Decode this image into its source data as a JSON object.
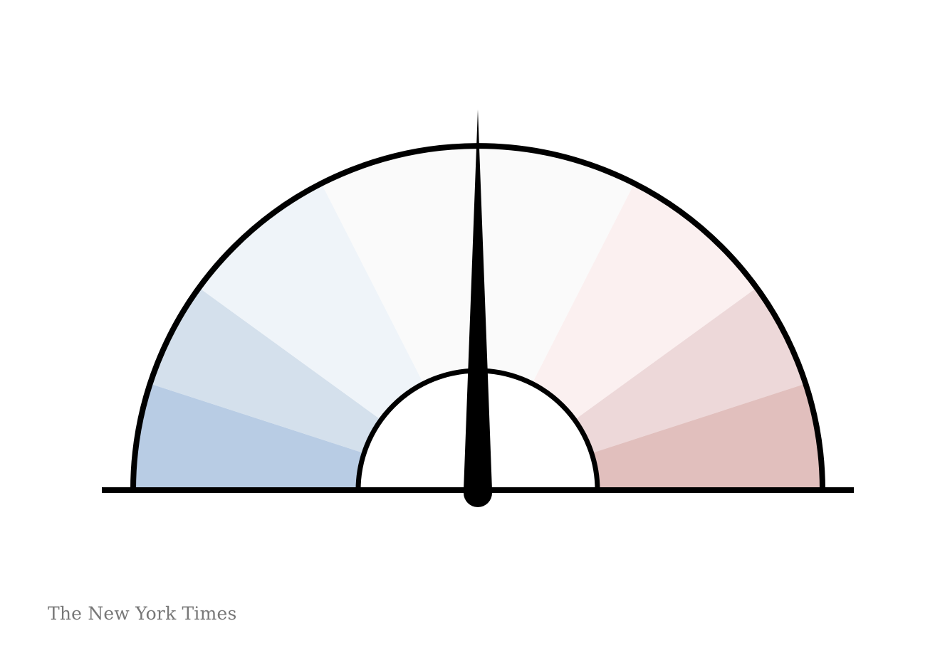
{
  "chart_data": {
    "type": "gauge",
    "title": "",
    "scale_min": -1,
    "scale_max": 1,
    "needle_value": 0.0,
    "segments": [
      {
        "from": -1.0,
        "to": -0.8,
        "color": "#b8cce4"
      },
      {
        "from": -0.8,
        "to": -0.6,
        "color": "#d4e0ec"
      },
      {
        "from": -0.6,
        "to": -0.3,
        "color": "#eff4f9"
      },
      {
        "from": -0.3,
        "to": 0.3,
        "color": "#fafafa"
      },
      {
        "from": 0.3,
        "to": 0.6,
        "color": "#fbf0f0"
      },
      {
        "from": 0.6,
        "to": 0.8,
        "color": "#edd8d9"
      },
      {
        "from": 0.8,
        "to": 1.0,
        "color": "#e1bfbd"
      }
    ],
    "outline_color": "#000000"
  },
  "footer": {
    "credit": "The New York Times"
  }
}
